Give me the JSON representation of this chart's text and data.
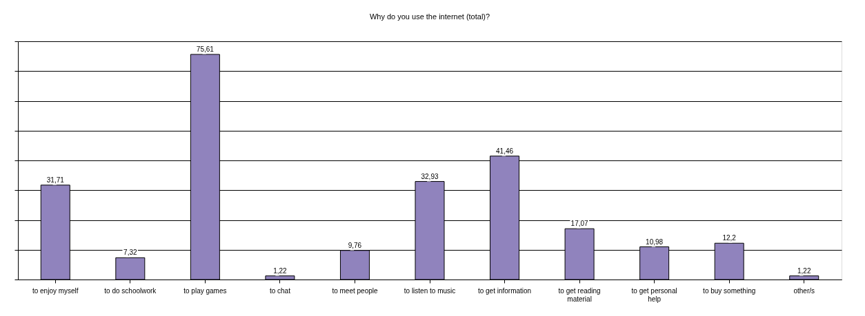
{
  "chart_data": {
    "type": "bar",
    "title": "Why do you use the internet (total)?",
    "categories": [
      "to enjoy myself",
      "to do schoolwork",
      "to play games",
      "to chat",
      "to meet people",
      "to listen to music",
      "to get information",
      "to get reading material",
      "to get personal help",
      "to buy something",
      "other/s"
    ],
    "values": [
      31.71,
      7.32,
      75.61,
      1.22,
      9.76,
      32.93,
      41.46,
      17.07,
      10.98,
      12.2,
      1.22
    ],
    "value_labels": [
      "31,71",
      "7,32",
      "75,61",
      "1,22",
      "9,76",
      "32,93",
      "41,46",
      "17,07",
      "10,98",
      "12,2",
      "1,22"
    ],
    "color": "#9083bd",
    "ylim": [
      0,
      80
    ],
    "yticks": [
      {
        "value": 0,
        "label": null
      },
      {
        "value": 10,
        "label": null
      },
      {
        "value": 20,
        "label": null
      },
      {
        "value": 30,
        "label": null
      },
      {
        "value": 40,
        "label": null
      },
      {
        "value": 50,
        "label": null
      },
      {
        "value": 60,
        "label": null
      },
      {
        "value": 70,
        "label": null
      },
      {
        "value": 80,
        "label": null
      }
    ],
    "grid": "y",
    "tick_labels": "x"
  }
}
